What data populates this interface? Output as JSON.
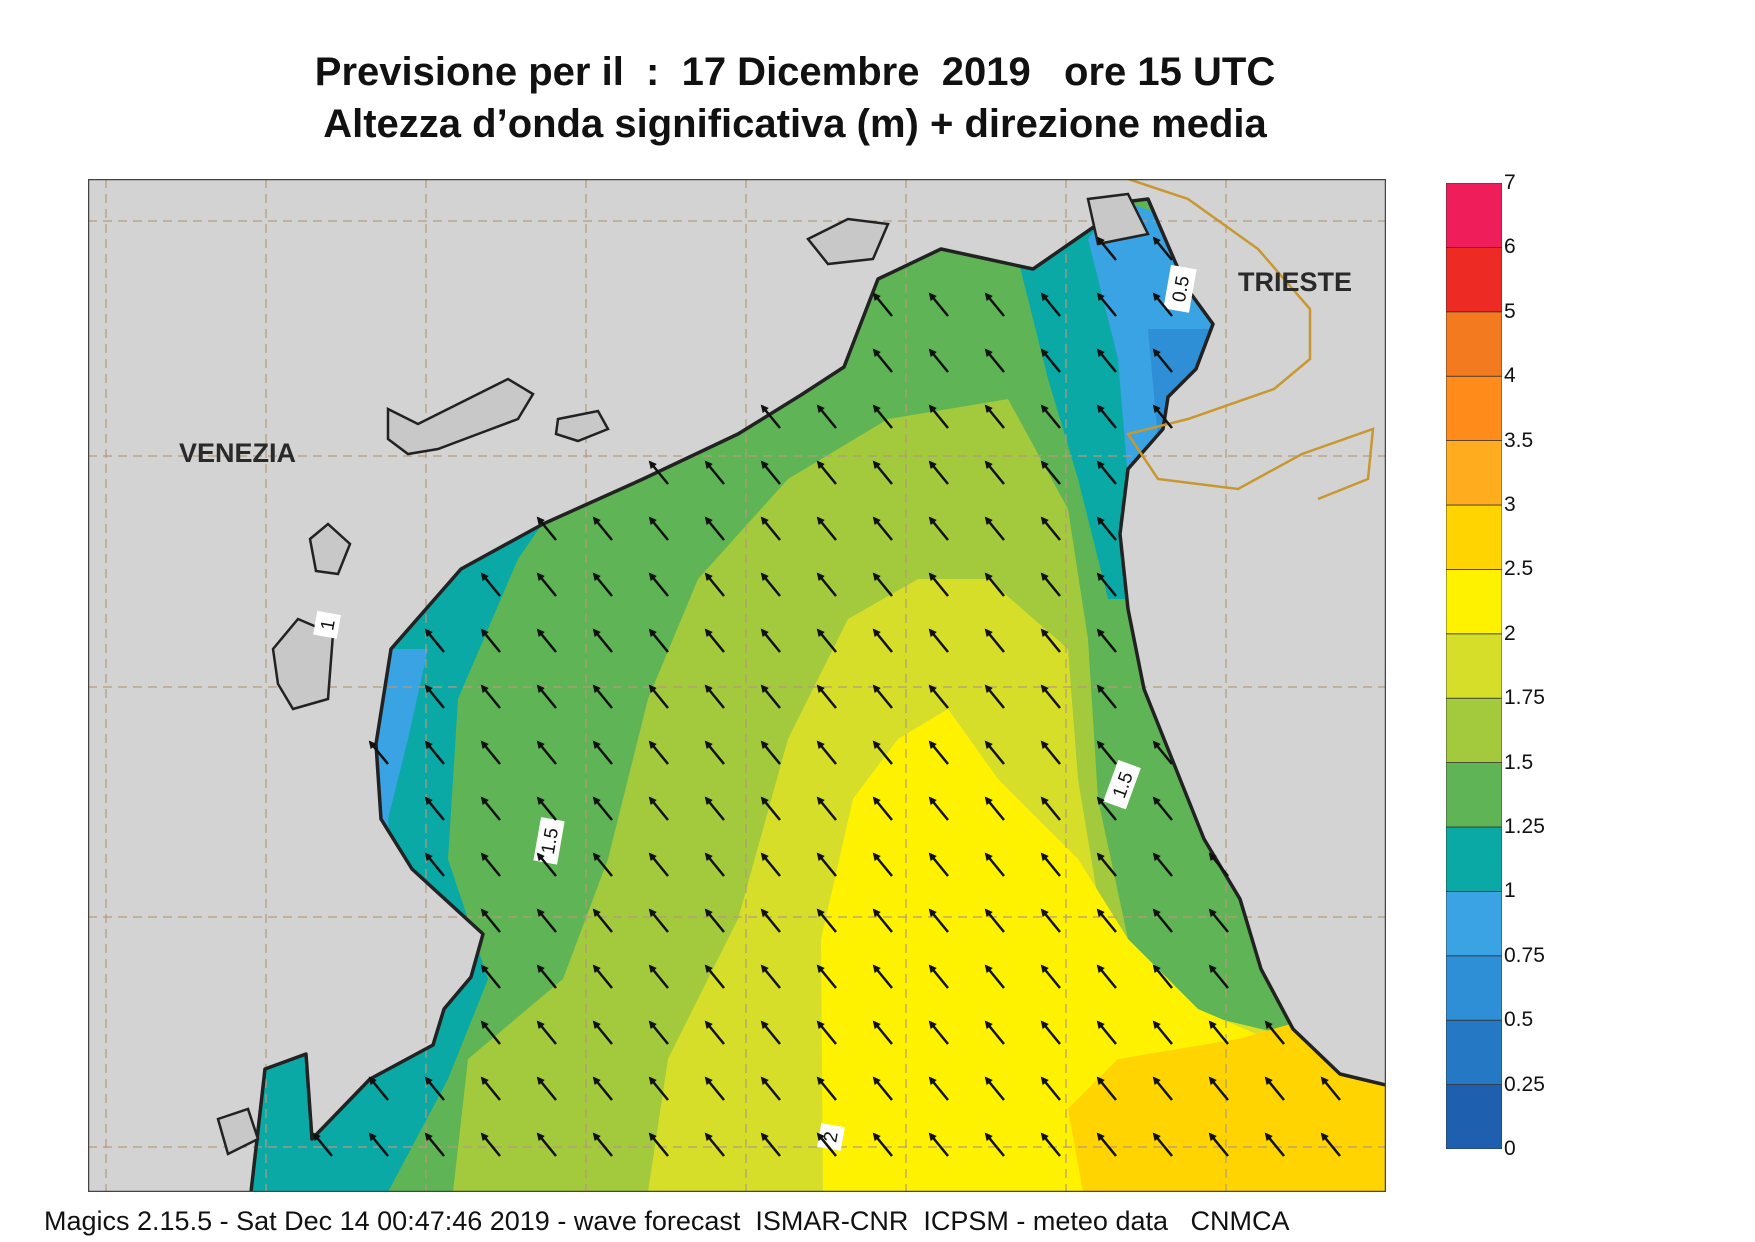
{
  "title": {
    "line1": "Previsione per il  :  17 Dicembre  2019   ore 15 UTC",
    "line2": "Altezza d’onda significativa (m) + direzione media"
  },
  "places": {
    "venezia": "VENEZIA",
    "trieste": "TRIESTE"
  },
  "contour_labels": [
    "0.5",
    "1",
    "1.5",
    "1.5",
    "2"
  ],
  "legend": {
    "levels": [
      "0",
      "0.25",
      "0.5",
      "0.75",
      "1",
      "1.25",
      "1.5",
      "1.75",
      "2",
      "2.5",
      "3",
      "3.5",
      "4",
      "5",
      "6",
      "7"
    ],
    "colors": [
      "#1f5fb0",
      "#2578c4",
      "#2f8fd6",
      "#3aa3e3",
      "#0aa9a5",
      "#5fb455",
      "#a3c93c",
      "#d6de2a",
      "#fff200",
      "#ffd400",
      "#ffad1f",
      "#ff8c1a",
      "#f47a20",
      "#ee2a24",
      "#ef1e5a"
    ]
  },
  "colors": {
    "land": "#d3d3d3",
    "grid": "#b49a7c",
    "coast": "#222222",
    "border": "#c9972f"
  },
  "footer": "Magics 2.15.5 - Sat Dec 14 00:47:46 2019 - wave forecast  ISMAR-CNR  ICPSM - meteo data   CNMCA"
}
